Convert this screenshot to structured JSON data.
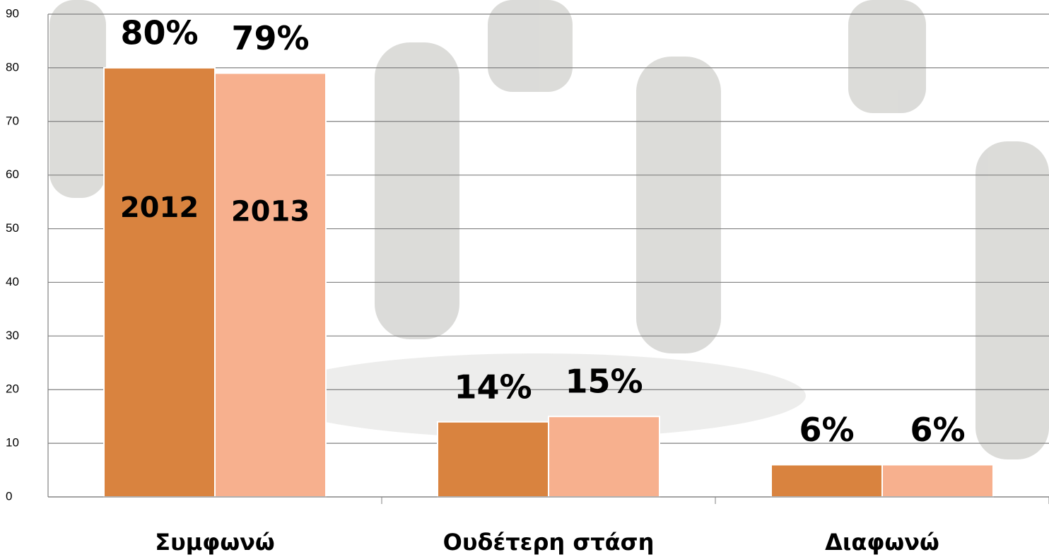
{
  "chart_data": {
    "type": "bar",
    "categories": [
      "Συμφωνώ",
      "Ουδέτερη στάση",
      "Διαφωνώ"
    ],
    "series": [
      {
        "name": "2012",
        "color": "#d9833f",
        "values": [
          80,
          14,
          6
        ],
        "value_labels": [
          "80%",
          "14%",
          "6%"
        ]
      },
      {
        "name": "2013",
        "color": "#f7b08e",
        "values": [
          79,
          15,
          6
        ],
        "value_labels": [
          "79%",
          "15%",
          "6%"
        ]
      }
    ],
    "ylim": [
      0,
      90
    ],
    "yticks": [
      0,
      10,
      20,
      30,
      40,
      50,
      60,
      70,
      80,
      90
    ],
    "grid": true
  }
}
